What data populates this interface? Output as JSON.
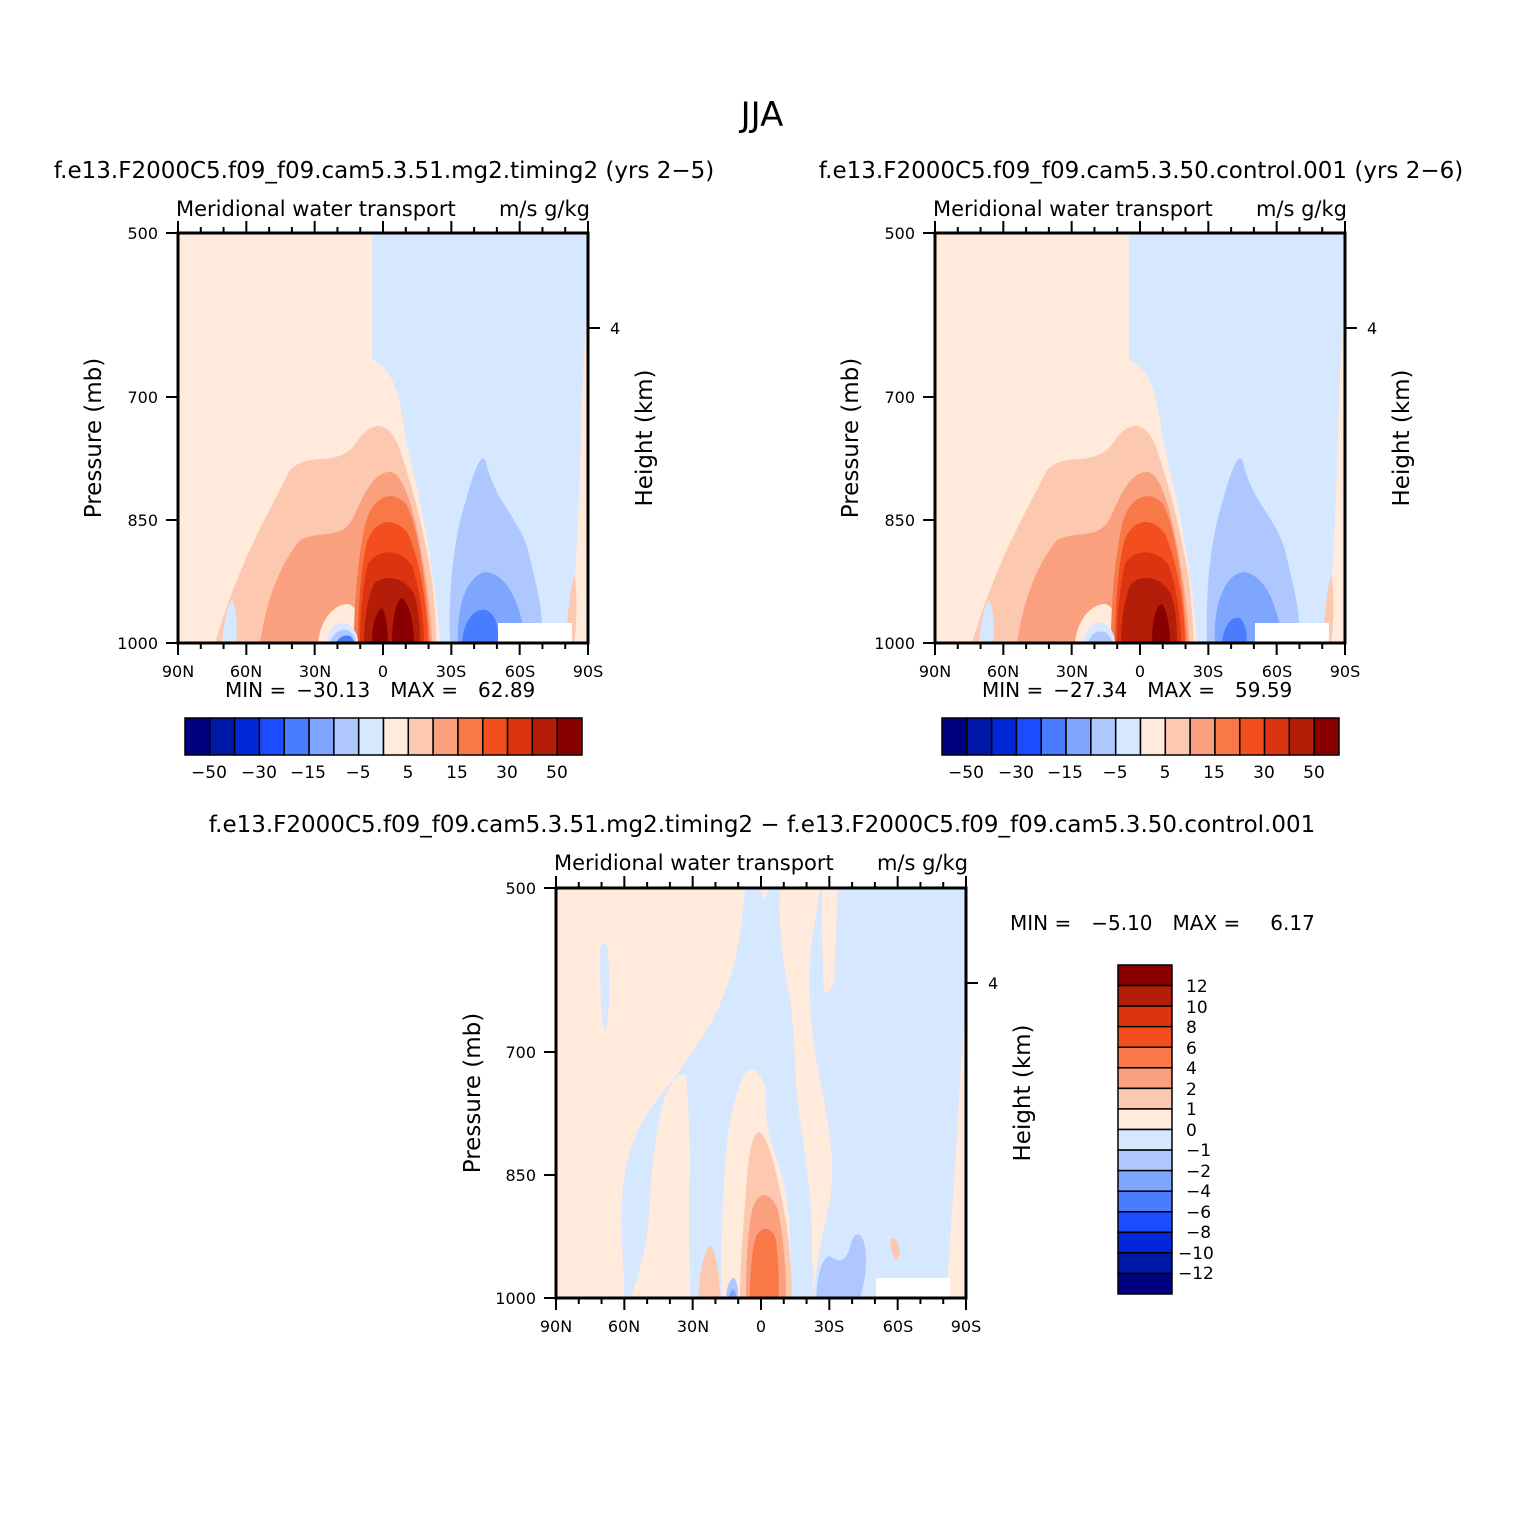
{
  "figure": {
    "title": "JJA"
  },
  "colors": {
    "outline": "#000000",
    "missing": "#ffffff",
    "diverging": [
      "#000080",
      "#0018a8",
      "#0028d8",
      "#1c4cff",
      "#4a7cff",
      "#7ea6ff",
      "#aec8ff",
      "#d6e8ff",
      "#ffeadc",
      "#fdc8b0",
      "#fba07e",
      "#f87848",
      "#f24e1e",
      "#dc3410",
      "#b41e08",
      "#8a0000"
    ]
  },
  "chart_data": [
    {
      "type": "contour",
      "title": "f.e13.F2000C5.f09_f09.cam5.3.51.mg2.timing2 (yrs 2−5)",
      "left_label": "Meridional water transport",
      "right_label": "m/s g/kg",
      "ylabel": "Pressure (mb)",
      "ylabel_right": "Height (km)",
      "xlim": [
        "90N",
        "90S"
      ],
      "ylim": [
        1000,
        500
      ],
      "x_ticks": [
        "90N",
        "60N",
        "30N",
        "0",
        "30S",
        "60S",
        "90S"
      ],
      "y_ticks": [
        "500",
        "700",
        "850",
        "1000"
      ],
      "y_right_ticks": [
        "4"
      ],
      "min_label": "MIN =",
      "min_value": "−30.13",
      "max_label": "MAX =",
      "max_value": "62.89",
      "colorbar_orientation": "horizontal",
      "colorbar_labels": [
        "−50",
        "−30",
        "−15",
        "−5",
        "5",
        "15",
        "30",
        "50"
      ]
    },
    {
      "type": "contour",
      "title": "f.e13.F2000C5.f09_f09.cam5.3.50.control.001 (yrs 2−6)",
      "left_label": "Meridional water transport",
      "right_label": "m/s g/kg",
      "ylabel": "Pressure (mb)",
      "ylabel_right": "Height (km)",
      "xlim": [
        "90N",
        "90S"
      ],
      "ylim": [
        1000,
        500
      ],
      "x_ticks": [
        "90N",
        "60N",
        "30N",
        "0",
        "30S",
        "60S",
        "90S"
      ],
      "y_ticks": [
        "500",
        "700",
        "850",
        "1000"
      ],
      "y_right_ticks": [
        "4"
      ],
      "min_label": "MIN =",
      "min_value": "−27.34",
      "max_label": "MAX =",
      "max_value": "59.59",
      "colorbar_orientation": "horizontal",
      "colorbar_labels": [
        "−50",
        "−30",
        "−15",
        "−5",
        "5",
        "15",
        "30",
        "50"
      ]
    },
    {
      "type": "contour",
      "title": "f.e13.F2000C5.f09_f09.cam5.3.51.mg2.timing2 − f.e13.F2000C5.f09_f09.cam5.3.50.control.001",
      "left_label": "Meridional water transport",
      "right_label": "m/s g/kg",
      "ylabel": "Pressure (mb)",
      "ylabel_right": "Height (km)",
      "xlim": [
        "90N",
        "90S"
      ],
      "ylim": [
        1000,
        500
      ],
      "x_ticks": [
        "90N",
        "60N",
        "30N",
        "0",
        "30S",
        "60S",
        "90S"
      ],
      "y_ticks": [
        "500",
        "700",
        "850",
        "1000"
      ],
      "y_right_ticks": [
        "4"
      ],
      "min_label": "MIN =",
      "min_value": "−5.10",
      "max_label": "MAX =",
      "max_value": "6.17",
      "colorbar_orientation": "vertical",
      "colorbar_labels": [
        "12",
        "10",
        "8",
        "6",
        "4",
        "2",
        "1",
        "0",
        "−1",
        "−2",
        "−4",
        "−6",
        "−8",
        "−10",
        "−12"
      ]
    }
  ]
}
